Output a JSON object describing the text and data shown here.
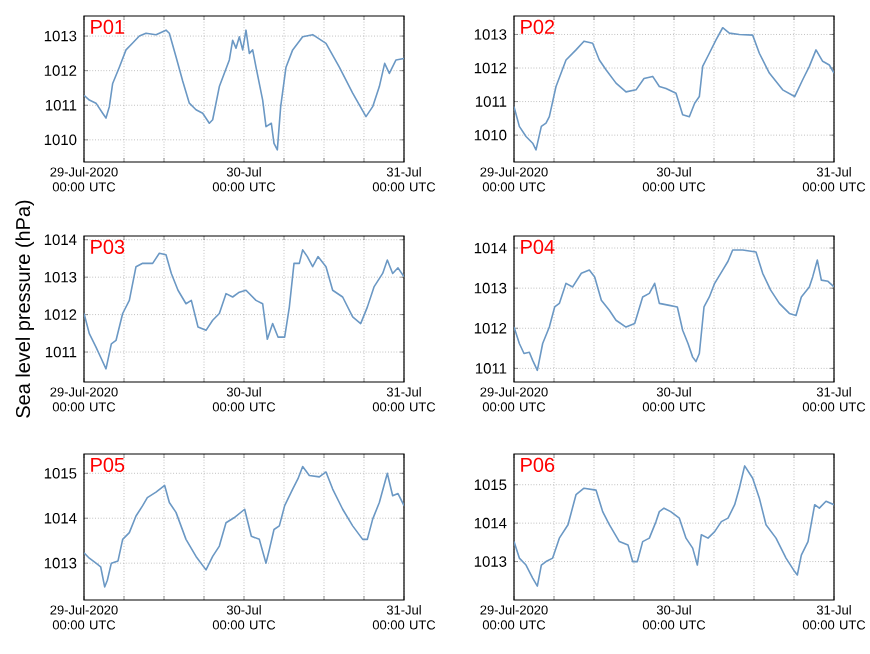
{
  "chart_data": [
    {
      "type": "line",
      "title": "P01",
      "color": "#6b98c4",
      "grid": true,
      "xlim": [
        "2020-07-29T00:00",
        "2020-07-31T00:00"
      ],
      "ylim": [
        1009.36,
        1013.58
      ],
      "yticks": [
        1010,
        1011,
        1012,
        1013
      ],
      "xticks": [
        {
          "value": "2020-07-29T00:00",
          "label": "29-Jul-2020 00:00 UTC"
        },
        {
          "value": "2020-07-29T06:00",
          "label": null
        },
        {
          "value": "2020-07-29T12:00",
          "label": null
        },
        {
          "value": "2020-07-29T18:00",
          "label": null
        },
        {
          "value": "2020-07-30T00:00",
          "label": "30-Jul 00:00 UTC"
        },
        {
          "value": "2020-07-30T06:00",
          "label": null
        },
        {
          "value": "2020-07-30T12:00",
          "label": null
        },
        {
          "value": "2020-07-30T18:00",
          "label": null
        },
        {
          "value": "2020-07-31T00:00",
          "label": "31-Jul 00:00 UTC"
        }
      ],
      "x": [
        "2020-07-29T00:00",
        "2020-07-29T00:48",
        "2020-07-29T01:48",
        "2020-07-29T02:48",
        "2020-07-29T03:18",
        "2020-07-29T03:48",
        "2020-07-29T04:18",
        "2020-07-29T05:18",
        "2020-07-29T06:18",
        "2020-07-29T07:18",
        "2020-07-29T08:18",
        "2020-07-29T09:18",
        "2020-07-29T10:48",
        "2020-07-29T12:18",
        "2020-07-29T12:48",
        "2020-07-29T13:48",
        "2020-07-29T14:48",
        "2020-07-29T15:48",
        "2020-07-29T16:48",
        "2020-07-29T17:48",
        "2020-07-29T18:48",
        "2020-07-29T19:18",
        "2020-07-29T20:18",
        "2020-07-29T21:48",
        "2020-07-29T22:18",
        "2020-07-29T22:48",
        "2020-07-29T23:18",
        "2020-07-29T23:48",
        "2020-07-30T00:18",
        "2020-07-30T00:48",
        "2020-07-30T01:18",
        "2020-07-30T01:48",
        "2020-07-30T02:48",
        "2020-07-30T03:18",
        "2020-07-30T04:06",
        "2020-07-30T04:30",
        "2020-07-30T05:00",
        "2020-07-30T05:30",
        "2020-07-30T06:18",
        "2020-07-30T07:18",
        "2020-07-30T08:48",
        "2020-07-30T10:18",
        "2020-07-30T12:18",
        "2020-07-30T14:18",
        "2020-07-30T16:18",
        "2020-07-30T18:18",
        "2020-07-30T19:18",
        "2020-07-30T20:18",
        "2020-07-30T21:06",
        "2020-07-30T21:48",
        "2020-07-30T22:48",
        "2020-07-31T00:00"
      ],
      "values": [
        1011.29,
        1011.15,
        1011.06,
        1010.77,
        1010.63,
        1010.96,
        1011.63,
        1012.1,
        1012.6,
        1012.8,
        1013.0,
        1013.08,
        1013.04,
        1013.17,
        1013.08,
        1012.4,
        1011.7,
        1011.06,
        1010.87,
        1010.77,
        1010.48,
        1010.58,
        1011.54,
        1012.31,
        1012.88,
        1012.65,
        1012.98,
        1012.6,
        1013.17,
        1012.5,
        1012.6,
        1012.1,
        1011.15,
        1010.38,
        1010.48,
        1009.9,
        1009.71,
        1010.96,
        1012.1,
        1012.6,
        1012.98,
        1013.04,
        1012.79,
        1012.1,
        1011.35,
        1010.67,
        1010.96,
        1011.54,
        1012.21,
        1011.92,
        1012.31,
        1012.35
      ]
    },
    {
      "type": "line",
      "title": "P02",
      "color": "#6b98c4",
      "grid": true,
      "xlim": [
        "2020-07-29T00:00",
        "2020-07-31T00:00"
      ],
      "ylim": [
        1009.2,
        1013.55
      ],
      "yticks": [
        1010,
        1011,
        1012,
        1013
      ],
      "xticks": [
        {
          "value": "2020-07-29T00:00",
          "label": "29-Jul-2020 00:00 UTC"
        },
        {
          "value": "2020-07-29T06:00",
          "label": null
        },
        {
          "value": "2020-07-29T12:00",
          "label": null
        },
        {
          "value": "2020-07-29T18:00",
          "label": null
        },
        {
          "value": "2020-07-30T00:00",
          "label": "30-Jul 00:00 UTC"
        },
        {
          "value": "2020-07-30T06:00",
          "label": null
        },
        {
          "value": "2020-07-30T12:00",
          "label": null
        },
        {
          "value": "2020-07-30T18:00",
          "label": null
        },
        {
          "value": "2020-07-31T00:00",
          "label": "31-Jul 00:00 UTC"
        }
      ],
      "x": [
        "2020-07-29T00:00",
        "2020-07-29T00:48",
        "2020-07-29T01:48",
        "2020-07-29T02:48",
        "2020-07-29T03:18",
        "2020-07-29T04:06",
        "2020-07-29T04:48",
        "2020-07-29T05:18",
        "2020-07-29T06:18",
        "2020-07-29T07:48",
        "2020-07-29T09:18",
        "2020-07-29T10:30",
        "2020-07-29T11:48",
        "2020-07-29T12:48",
        "2020-07-29T13:48",
        "2020-07-29T15:18",
        "2020-07-29T16:48",
        "2020-07-29T18:18",
        "2020-07-29T19:30",
        "2020-07-29T20:48",
        "2020-07-29T21:48",
        "2020-07-29T22:48",
        "2020-07-30T00:18",
        "2020-07-30T01:18",
        "2020-07-30T02:18",
        "2020-07-30T03:06",
        "2020-07-30T03:48",
        "2020-07-30T04:18",
        "2020-07-30T05:18",
        "2020-07-30T06:18",
        "2020-07-30T07:18",
        "2020-07-30T08:18",
        "2020-07-30T09:48",
        "2020-07-30T11:48",
        "2020-07-30T12:48",
        "2020-07-30T14:18",
        "2020-07-30T16:18",
        "2020-07-30T18:06",
        "2020-07-30T19:18",
        "2020-07-30T20:18",
        "2020-07-30T21:18",
        "2020-07-30T22:18",
        "2020-07-30T23:18",
        "2020-07-31T00:00"
      ],
      "values": [
        1010.85,
        1010.26,
        1009.96,
        1009.76,
        1009.56,
        1010.26,
        1010.36,
        1010.55,
        1011.45,
        1012.24,
        1012.54,
        1012.8,
        1012.74,
        1012.24,
        1011.95,
        1011.55,
        1011.29,
        1011.35,
        1011.69,
        1011.75,
        1011.45,
        1011.39,
        1011.25,
        1010.61,
        1010.55,
        1010.95,
        1011.15,
        1012.05,
        1012.44,
        1012.84,
        1013.2,
        1013.04,
        1013.0,
        1012.98,
        1012.44,
        1011.85,
        1011.35,
        1011.15,
        1011.65,
        1012.05,
        1012.54,
        1012.2,
        1012.09,
        1011.85
      ]
    },
    {
      "type": "line",
      "title": "P03",
      "ylabel": "Sea level pressure (hPa)",
      "color": "#6b98c4",
      "grid": true,
      "xlim": [
        "2020-07-29T00:00",
        "2020-07-31T00:00"
      ],
      "ylim": [
        1010.2,
        1014.1
      ],
      "yticks": [
        1011,
        1012,
        1013,
        1014
      ],
      "xticks": [
        {
          "value": "2020-07-29T00:00",
          "label": "29-Jul-2020 00:00 UTC"
        },
        {
          "value": "2020-07-29T06:00",
          "label": null
        },
        {
          "value": "2020-07-29T12:00",
          "label": null
        },
        {
          "value": "2020-07-29T18:00",
          "label": null
        },
        {
          "value": "2020-07-30T00:00",
          "label": "30-Jul 00:00 UTC"
        },
        {
          "value": "2020-07-30T06:00",
          "label": null
        },
        {
          "value": "2020-07-30T12:00",
          "label": null
        },
        {
          "value": "2020-07-30T18:00",
          "label": null
        },
        {
          "value": "2020-07-31T00:00",
          "label": "31-Jul 00:00 UTC"
        }
      ],
      "x": [
        "2020-07-29T00:00",
        "2020-07-29T00:48",
        "2020-07-29T01:48",
        "2020-07-29T02:30",
        "2020-07-29T03:18",
        "2020-07-29T04:06",
        "2020-07-29T04:48",
        "2020-07-29T05:48",
        "2020-07-29T06:48",
        "2020-07-29T07:48",
        "2020-07-29T08:48",
        "2020-07-29T10:18",
        "2020-07-29T11:18",
        "2020-07-29T12:18",
        "2020-07-29T13:06",
        "2020-07-29T14:06",
        "2020-07-29T15:18",
        "2020-07-29T16:06",
        "2020-07-29T17:06",
        "2020-07-29T18:18",
        "2020-07-29T19:18",
        "2020-07-29T20:18",
        "2020-07-29T21:18",
        "2020-07-29T22:18",
        "2020-07-29T23:18",
        "2020-07-30T00:18",
        "2020-07-30T01:48",
        "2020-07-30T02:48",
        "2020-07-30T03:30",
        "2020-07-30T04:18",
        "2020-07-30T05:06",
        "2020-07-30T06:06",
        "2020-07-30T06:48",
        "2020-07-30T07:30",
        "2020-07-30T08:18",
        "2020-07-30T08:48",
        "2020-07-30T09:30",
        "2020-07-30T10:18",
        "2020-07-30T11:06",
        "2020-07-30T12:18",
        "2020-07-30T13:18",
        "2020-07-30T14:48",
        "2020-07-30T16:18",
        "2020-07-30T17:30",
        "2020-07-30T18:30",
        "2020-07-30T19:30",
        "2020-07-30T20:48",
        "2020-07-30T21:30",
        "2020-07-30T22:18",
        "2020-07-30T23:06",
        "2020-07-31T00:00"
      ],
      "values": [
        1012.03,
        1011.49,
        1011.13,
        1010.86,
        1010.55,
        1011.22,
        1011.31,
        1012.03,
        1012.38,
        1013.28,
        1013.37,
        1013.37,
        1013.64,
        1013.6,
        1013.1,
        1012.65,
        1012.29,
        1012.38,
        1011.67,
        1011.58,
        1011.85,
        1012.03,
        1012.56,
        1012.47,
        1012.6,
        1012.65,
        1012.38,
        1012.29,
        1011.34,
        1011.76,
        1011.4,
        1011.4,
        1012.2,
        1013.37,
        1013.37,
        1013.73,
        1013.55,
        1013.28,
        1013.55,
        1013.28,
        1012.65,
        1012.47,
        1011.94,
        1011.76,
        1012.2,
        1012.74,
        1013.1,
        1013.46,
        1013.1,
        1013.25,
        1013.01
      ]
    },
    {
      "type": "line",
      "title": "P04",
      "color": "#6b98c4",
      "grid": true,
      "xlim": [
        "2020-07-29T00:00",
        "2020-07-31T00:00"
      ],
      "ylim": [
        1010.66,
        1014.3
      ],
      "yticks": [
        1011,
        1012,
        1013,
        1014
      ],
      "xticks": [
        {
          "value": "2020-07-29T00:00",
          "label": "29-Jul-2020 00:00 UTC"
        },
        {
          "value": "2020-07-29T06:00",
          "label": null
        },
        {
          "value": "2020-07-29T12:00",
          "label": null
        },
        {
          "value": "2020-07-29T18:00",
          "label": null
        },
        {
          "value": "2020-07-30T00:00",
          "label": "30-Jul 00:00 UTC"
        },
        {
          "value": "2020-07-30T06:00",
          "label": null
        },
        {
          "value": "2020-07-30T12:00",
          "label": null
        },
        {
          "value": "2020-07-30T18:00",
          "label": null
        },
        {
          "value": "2020-07-31T00:00",
          "label": "31-Jul 00:00 UTC"
        }
      ],
      "x": [
        "2020-07-29T00:00",
        "2020-07-29T00:48",
        "2020-07-29T01:30",
        "2020-07-29T02:18",
        "2020-07-29T02:48",
        "2020-07-29T03:30",
        "2020-07-29T04:18",
        "2020-07-29T05:18",
        "2020-07-29T06:06",
        "2020-07-29T06:48",
        "2020-07-29T07:48",
        "2020-07-29T08:48",
        "2020-07-29T10:06",
        "2020-07-29T11:18",
        "2020-07-29T12:06",
        "2020-07-29T13:06",
        "2020-07-29T14:18",
        "2020-07-29T15:18",
        "2020-07-29T16:48",
        "2020-07-29T18:06",
        "2020-07-29T19:18",
        "2020-07-29T20:18",
        "2020-07-29T21:06",
        "2020-07-29T21:48",
        "2020-07-29T23:18",
        "2020-07-30T00:30",
        "2020-07-30T01:18",
        "2020-07-30T02:06",
        "2020-07-30T02:48",
        "2020-07-30T03:18",
        "2020-07-30T03:48",
        "2020-07-30T04:30",
        "2020-07-30T05:18",
        "2020-07-30T06:06",
        "2020-07-30T07:18",
        "2020-07-30T08:06",
        "2020-07-30T08:48",
        "2020-07-30T10:18",
        "2020-07-30T12:18",
        "2020-07-30T13:18",
        "2020-07-30T14:30",
        "2020-07-30T15:48",
        "2020-07-30T17:18",
        "2020-07-30T18:18",
        "2020-07-30T19:06",
        "2020-07-30T20:18",
        "2020-07-30T20:48",
        "2020-07-30T21:30",
        "2020-07-30T22:06",
        "2020-07-30T23:06",
        "2020-07-31T00:00"
      ],
      "values": [
        1012.03,
        1011.62,
        1011.37,
        1011.4,
        1011.2,
        1010.95,
        1011.62,
        1012.03,
        1012.53,
        1012.62,
        1013.12,
        1013.03,
        1013.37,
        1013.45,
        1013.28,
        1012.7,
        1012.45,
        1012.2,
        1012.03,
        1012.12,
        1012.78,
        1012.87,
        1013.12,
        1012.62,
        1012.57,
        1012.53,
        1011.95,
        1011.62,
        1011.28,
        1011.17,
        1011.37,
        1012.53,
        1012.78,
        1013.12,
        1013.45,
        1013.67,
        1013.95,
        1013.95,
        1013.9,
        1013.37,
        1012.95,
        1012.62,
        1012.37,
        1012.32,
        1012.78,
        1013.03,
        1013.28,
        1013.7,
        1013.2,
        1013.17,
        1013.03
      ]
    },
    {
      "type": "line",
      "title": "P05",
      "color": "#6b98c4",
      "grid": true,
      "xlim": [
        "2020-07-29T00:00",
        "2020-07-31T00:00"
      ],
      "ylim": [
        1012.18,
        1015.43
      ],
      "yticks": [
        1013,
        1014,
        1015
      ],
      "xticks": [
        {
          "value": "2020-07-29T00:00",
          "label": "29-Jul-2020 00:00 UTC"
        },
        {
          "value": "2020-07-29T06:00",
          "label": null
        },
        {
          "value": "2020-07-29T12:00",
          "label": null
        },
        {
          "value": "2020-07-29T18:00",
          "label": null
        },
        {
          "value": "2020-07-30T00:00",
          "label": "30-Jul 00:00 UTC"
        },
        {
          "value": "2020-07-30T06:00",
          "label": null
        },
        {
          "value": "2020-07-30T12:00",
          "label": null
        },
        {
          "value": "2020-07-30T18:00",
          "label": null
        },
        {
          "value": "2020-07-31T00:00",
          "label": "31-Jul 00:00 UTC"
        }
      ],
      "x": [
        "2020-07-29T00:00",
        "2020-07-29T00:48",
        "2020-07-29T01:48",
        "2020-07-29T02:30",
        "2020-07-29T03:06",
        "2020-07-29T03:30",
        "2020-07-29T04:06",
        "2020-07-29T05:06",
        "2020-07-29T05:48",
        "2020-07-29T06:48",
        "2020-07-29T07:48",
        "2020-07-29T08:48",
        "2020-07-29T09:30",
        "2020-07-29T10:48",
        "2020-07-29T12:06",
        "2020-07-29T12:48",
        "2020-07-29T13:48",
        "2020-07-29T15:18",
        "2020-07-29T16:48",
        "2020-07-29T18:18",
        "2020-07-29T19:18",
        "2020-07-29T20:18",
        "2020-07-29T21:18",
        "2020-07-29T22:30",
        "2020-07-30T00:06",
        "2020-07-30T01:06",
        "2020-07-30T02:18",
        "2020-07-30T03:18",
        "2020-07-30T03:48",
        "2020-07-30T04:30",
        "2020-07-30T05:18",
        "2020-07-30T06:06",
        "2020-07-30T07:18",
        "2020-07-30T08:06",
        "2020-07-30T08:48",
        "2020-07-30T09:48",
        "2020-07-30T11:18",
        "2020-07-30T12:18",
        "2020-07-30T13:18",
        "2020-07-30T14:48",
        "2020-07-30T16:18",
        "2020-07-30T17:48",
        "2020-07-30T18:30",
        "2020-07-30T19:18",
        "2020-07-30T20:18",
        "2020-07-30T21:30",
        "2020-07-30T22:18",
        "2020-07-30T23:06",
        "2020-07-31T00:00"
      ],
      "values": [
        1013.23,
        1013.11,
        1013.0,
        1012.92,
        1012.47,
        1012.62,
        1013.0,
        1013.05,
        1013.53,
        1013.68,
        1014.05,
        1014.28,
        1014.46,
        1014.58,
        1014.73,
        1014.35,
        1014.13,
        1013.53,
        1013.15,
        1012.85,
        1013.15,
        1013.38,
        1013.9,
        1014.01,
        1014.2,
        1013.6,
        1013.53,
        1013.0,
        1013.3,
        1013.75,
        1013.83,
        1014.28,
        1014.65,
        1014.88,
        1015.15,
        1014.95,
        1014.92,
        1015.03,
        1014.65,
        1014.2,
        1013.83,
        1013.53,
        1013.53,
        1013.98,
        1014.35,
        1015.0,
        1014.5,
        1014.55,
        1014.28
      ]
    },
    {
      "type": "line",
      "title": "P06",
      "color": "#6b98c4",
      "grid": true,
      "xlim": [
        "2020-07-29T00:00",
        "2020-07-31T00:00"
      ],
      "ylim": [
        1012.0,
        1015.8
      ],
      "yticks": [
        1013,
        1014,
        1015
      ],
      "xticks": [
        {
          "value": "2020-07-29T00:00",
          "label": "29-Jul-2020 00:00 UTC"
        },
        {
          "value": "2020-07-29T06:00",
          "label": null
        },
        {
          "value": "2020-07-29T12:00",
          "label": null
        },
        {
          "value": "2020-07-29T18:00",
          "label": null
        },
        {
          "value": "2020-07-30T00:00",
          "label": "30-Jul 00:00 UTC"
        },
        {
          "value": "2020-07-30T06:00",
          "label": null
        },
        {
          "value": "2020-07-30T12:00",
          "label": null
        },
        {
          "value": "2020-07-30T18:00",
          "label": null
        },
        {
          "value": "2020-07-31T00:00",
          "label": "31-Jul 00:00 UTC"
        }
      ],
      "x": [
        "2020-07-29T00:00",
        "2020-07-29T00:48",
        "2020-07-29T01:48",
        "2020-07-29T02:48",
        "2020-07-29T03:30",
        "2020-07-29T04:06",
        "2020-07-29T04:48",
        "2020-07-29T05:48",
        "2020-07-29T06:48",
        "2020-07-29T08:06",
        "2020-07-29T09:18",
        "2020-07-29T10:30",
        "2020-07-29T12:18",
        "2020-07-29T13:18",
        "2020-07-29T14:18",
        "2020-07-29T15:48",
        "2020-07-29T17:06",
        "2020-07-29T17:48",
        "2020-07-29T18:30",
        "2020-07-29T19:18",
        "2020-07-29T20:18",
        "2020-07-29T21:18",
        "2020-07-29T21:48",
        "2020-07-29T22:30",
        "2020-07-29T23:30",
        "2020-07-30T00:48",
        "2020-07-30T01:48",
        "2020-07-30T02:48",
        "2020-07-30T03:30",
        "2020-07-30T04:06",
        "2020-07-30T05:06",
        "2020-07-30T06:06",
        "2020-07-30T07:06",
        "2020-07-30T08:06",
        "2020-07-30T09:06",
        "2020-07-30T09:48",
        "2020-07-30T10:36",
        "2020-07-30T11:48",
        "2020-07-30T12:48",
        "2020-07-30T13:48",
        "2020-07-30T15:18",
        "2020-07-30T16:48",
        "2020-07-30T18:06",
        "2020-07-30T18:30",
        "2020-07-30T19:06",
        "2020-07-30T20:06",
        "2020-07-30T21:06",
        "2020-07-30T21:48",
        "2020-07-30T22:48",
        "2020-07-31T00:00"
      ],
      "values": [
        1013.52,
        1013.09,
        1012.91,
        1012.57,
        1012.36,
        1012.91,
        1013.0,
        1013.09,
        1013.61,
        1013.96,
        1014.74,
        1014.91,
        1014.86,
        1014.3,
        1013.96,
        1013.52,
        1013.43,
        1013.0,
        1013.0,
        1013.52,
        1013.61,
        1014.04,
        1014.3,
        1014.39,
        1014.3,
        1014.13,
        1013.61,
        1013.35,
        1012.91,
        1013.7,
        1013.61,
        1013.78,
        1014.04,
        1014.13,
        1014.48,
        1014.91,
        1015.49,
        1015.17,
        1014.65,
        1013.96,
        1013.61,
        1013.09,
        1012.74,
        1012.65,
        1013.17,
        1013.52,
        1014.48,
        1014.39,
        1014.57,
        1014.48
      ]
    }
  ]
}
